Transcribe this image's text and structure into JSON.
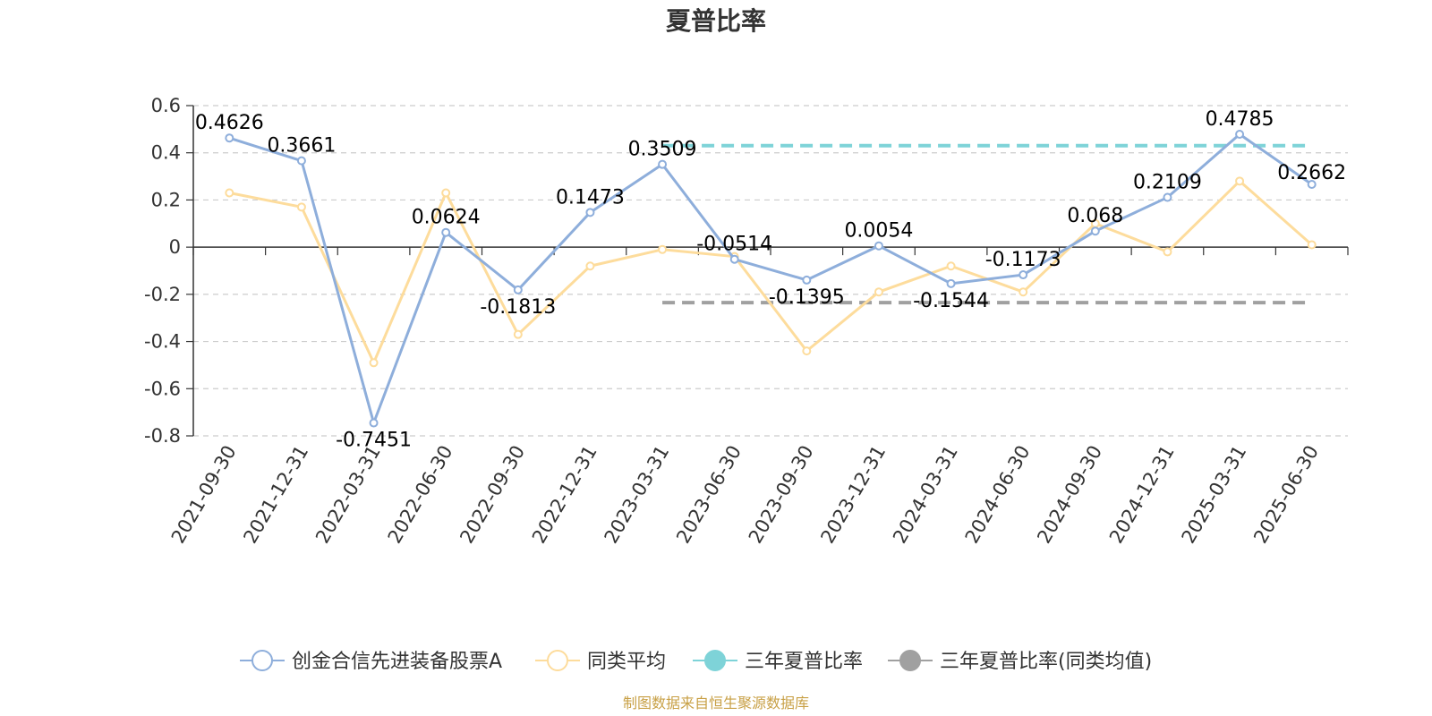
{
  "chart_data": {
    "type": "line",
    "title": "夏普比率",
    "xlabel": "",
    "ylabel": "",
    "ylim": [
      -0.8,
      0.6
    ],
    "yticks": [
      0.6,
      0.4,
      0.2,
      0,
      -0.2,
      -0.4,
      -0.6,
      -0.8
    ],
    "ytick_labels": [
      "0.6",
      "0.4",
      "0.2",
      "0",
      "-0.2",
      "-0.4",
      "-0.6",
      "-0.8"
    ],
    "grid": true,
    "legend_position": "bottom",
    "categories": [
      "2021-09-30",
      "2021-12-31",
      "2022-03-31",
      "2022-06-30",
      "2022-09-30",
      "2022-12-31",
      "2023-03-31",
      "2023-06-30",
      "2023-09-30",
      "2023-12-31",
      "2024-03-31",
      "2024-06-30",
      "2024-09-30",
      "2024-12-31",
      "2025-03-31",
      "2025-06-30"
    ],
    "series": [
      {
        "name": "创金合信先进装备股票A",
        "color": "#8eaedb",
        "values": [
          0.4626,
          0.3661,
          -0.7451,
          0.0624,
          -0.1813,
          0.1473,
          0.3509,
          -0.0514,
          -0.1395,
          0.0054,
          -0.1544,
          -0.1173,
          0.068,
          0.2109,
          0.4785,
          0.2662
        ],
        "labels": [
          "0.4626",
          "0.3661",
          "-0.7451",
          "0.0624",
          "-0.1813",
          "0.1473",
          "0.3509",
          "-0.0514",
          "-0.1395",
          "0.0054",
          "-0.1544",
          "-0.1173",
          "0.068",
          "0.2109",
          "0.4785",
          "0.2662"
        ]
      },
      {
        "name": "同类平均",
        "color": "#fddc9c",
        "values": [
          0.23,
          0.17,
          -0.49,
          0.23,
          -0.37,
          -0.08,
          -0.01,
          -0.04,
          -0.44,
          -0.19,
          -0.08,
          -0.19,
          0.1,
          -0.02,
          0.28,
          0.01
        ]
      }
    ],
    "reference_lines": [
      {
        "name": "三年夏普比率",
        "color": "#7ed3d8",
        "value": 0.43,
        "from": "2023-03-31",
        "to": "2025-06-30"
      },
      {
        "name": "三年夏普比率(同类均值)",
        "color": "#a0a0a0",
        "value": -0.235,
        "from": "2023-03-31",
        "to": "2025-06-30"
      }
    ],
    "source": "制图数据来自恒生聚源数据库"
  }
}
